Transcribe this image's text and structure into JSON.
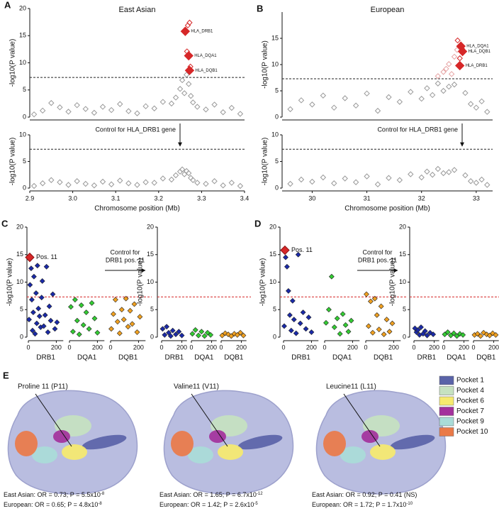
{
  "chart_data": [
    {
      "type": "scatter",
      "panel": "A",
      "title": "East Asian",
      "ylabel": "-log10(P value)",
      "xlim": [
        2.9,
        3.4
      ],
      "ylim": [
        0,
        20
      ],
      "yticks": [
        0,
        5,
        10,
        15,
        20
      ],
      "threshold": 7.3,
      "series": [
        {
          "color": "#9a9a9a",
          "x": [
            2.91,
            2.93,
            2.95,
            2.97,
            2.99,
            3.01,
            3.03,
            3.05,
            3.07,
            3.09,
            3.11,
            3.13,
            3.15,
            3.17,
            3.19,
            3.21,
            3.23,
            3.24,
            3.25,
            3.255,
            3.26,
            3.265,
            3.27,
            3.275,
            3.28,
            3.29,
            3.31,
            3.33,
            3.35,
            3.37,
            3.39
          ],
          "values": [
            0.5,
            1.2,
            2.6,
            1.8,
            1.0,
            2.2,
            1.5,
            0.8,
            1.9,
            1.3,
            2.4,
            1.1,
            0.7,
            2.0,
            1.6,
            2.8,
            2.5,
            3.6,
            5.2,
            6.8,
            4.4,
            7.8,
            6.1,
            3.9,
            2.7,
            1.9,
            1.4,
            2.3,
            0.9,
            1.7,
            0.6
          ]
        },
        {
          "color": "#d62728",
          "x": [
            3.268,
            3.272,
            3.266,
            3.274
          ],
          "values": [
            16.9,
            17.4,
            12.1,
            9.3
          ]
        },
        {
          "color": "#d62728",
          "x": [
            3.262,
            3.27,
            3.272
          ],
          "values": [
            15.8,
            11.3,
            8.6
          ],
          "point_labels": [
            "HLA_DRB1",
            "HLA_DQA1",
            "HLA_DQB1"
          ]
        }
      ]
    },
    {
      "type": "scatter",
      "ylabel": "-log10(P value)",
      "xlabel": "Chromosome position (Mb)",
      "annotation": "Control for HLA_DRB1 gene",
      "xlim": [
        2.9,
        3.4
      ],
      "xticks": [
        2.9,
        {
          "value": 3,
          "label": "3.0"
        },
        3.1,
        3.2,
        3.3,
        3.4
      ],
      "ylim": [
        0,
        10
      ],
      "yticks": [
        0,
        5,
        10
      ],
      "threshold": 7.3,
      "series": [
        {
          "color": "#9a9a9a",
          "x": [
            2.91,
            2.93,
            2.95,
            2.97,
            2.99,
            3.01,
            3.03,
            3.05,
            3.07,
            3.09,
            3.11,
            3.13,
            3.15,
            3.17,
            3.19,
            3.21,
            3.23,
            3.24,
            3.25,
            3.255,
            3.26,
            3.265,
            3.27,
            3.275,
            3.28,
            3.29,
            3.31,
            3.33,
            3.35,
            3.37,
            3.39
          ],
          "values": [
            0.4,
            0.9,
            1.5,
            1.1,
            0.6,
            1.3,
            0.8,
            0.5,
            1.2,
            0.7,
            1.4,
            0.9,
            0.6,
            1.1,
            1.0,
            1.8,
            1.6,
            2.4,
            3.1,
            3.5,
            2.6,
            3.2,
            2.8,
            1.9,
            1.5,
            1.0,
            0.8,
            1.3,
            0.5,
            1.0,
            0.4
          ]
        }
      ]
    },
    {
      "type": "scatter",
      "panel": "B",
      "title": "European",
      "ylabel": "-log10(P value)",
      "xlim": [
        29.45,
        33.3
      ],
      "ylim": [
        0,
        20
      ],
      "yticks": [
        0,
        5,
        10,
        15
      ],
      "threshold": 7.3,
      "series": [
        {
          "color": "#9a9a9a",
          "x": [
            29.6,
            29.8,
            30.0,
            30.2,
            30.4,
            30.6,
            30.8,
            31.0,
            31.2,
            31.4,
            31.6,
            31.8,
            32.0,
            32.1,
            32.2,
            32.3,
            32.4,
            32.5,
            32.6,
            32.8,
            32.9,
            33.0,
            33.1,
            33.2
          ],
          "values": [
            1.5,
            3.2,
            2.4,
            4.1,
            1.8,
            3.6,
            2.2,
            4.5,
            1.2,
            3.8,
            2.9,
            4.8,
            3.5,
            5.5,
            4.2,
            6.4,
            5.0,
            5.8,
            6.2,
            4.6,
            2.5,
            1.8,
            3.0,
            1.0
          ]
        },
        {
          "color": "#e6a3a3",
          "x": [
            32.3,
            32.4,
            32.45,
            32.5,
            32.55,
            32.6,
            32.65
          ],
          "values": [
            7.8,
            8.6,
            9.2,
            10.1,
            8.2,
            11.5,
            12.8
          ]
        },
        {
          "color": "#d62728",
          "x": [
            32.66,
            32.7,
            32.74
          ],
          "values": [
            14.6,
            11.2,
            13.0
          ]
        },
        {
          "color": "#d62728",
          "x": [
            32.72,
            32.75,
            32.7
          ],
          "values": [
            13.5,
            12.5,
            9.8
          ],
          "point_labels": [
            "HLA_DQA1",
            "HLA_DQB1",
            "HLA_DRB1"
          ]
        }
      ]
    },
    {
      "type": "scatter",
      "ylabel": "-log10(P value)",
      "xlabel": "Chromosome position (Mb)",
      "annotation": "Control for HLA_DRB1 gene",
      "xlim": [
        29.45,
        33.3
      ],
      "xticks": [
        30,
        31,
        32,
        33
      ],
      "ylim": [
        0,
        10
      ],
      "yticks": [
        0,
        5,
        10
      ],
      "threshold": 7.3,
      "series": [
        {
          "color": "#9a9a9a",
          "x": [
            29.6,
            29.8,
            30.0,
            30.2,
            30.4,
            30.6,
            30.8,
            31.0,
            31.2,
            31.4,
            31.6,
            31.8,
            32.0,
            32.1,
            32.2,
            32.3,
            32.4,
            32.5,
            32.6,
            32.8,
            32.9,
            33.0,
            33.1,
            33.2
          ],
          "values": [
            0.8,
            1.6,
            1.2,
            2.0,
            0.9,
            1.8,
            1.1,
            2.2,
            0.7,
            1.9,
            1.5,
            2.6,
            2.0,
            3.1,
            2.5,
            3.6,
            2.8,
            3.0,
            3.4,
            2.4,
            1.3,
            1.0,
            1.6,
            0.6
          ]
        }
      ]
    },
    {
      "type": "strip",
      "panel": "C",
      "ylabel": "-log10(P value)",
      "ylim": [
        0,
        20
      ],
      "yticks": [
        0,
        5,
        10,
        15,
        20
      ],
      "threshold": 7.3,
      "xlim": [
        0,
        250
      ],
      "xticks": [
        0,
        200
      ],
      "series": [
        {
          "name": "DRB1",
          "color": "#1a2aa8",
          "x": [
            5,
            12,
            20,
            25,
            30,
            35,
            40,
            48,
            55,
            60,
            65,
            72,
            80,
            88,
            95,
            100,
            110,
            120,
            130,
            140,
            150,
            160,
            175,
            190,
            205
          ],
          "values": [
            3.2,
            9.5,
            12.5,
            6.8,
            1.2,
            4.5,
            11.0,
            0.6,
            8.0,
            2.5,
            13.0,
            5.2,
            3.8,
            1.8,
            7.2,
            10.2,
            2.0,
            4.0,
            12.8,
            0.9,
            5.6,
            3.0,
            7.8,
            1.5,
            2.7
          ],
          "highlight_x": 10,
          "highlight_value": 14.5,
          "highlight_label": "Pos. 11",
          "highlight_color": "#d62728"
        },
        {
          "name": "DQA1",
          "color": "#33cc33",
          "x": [
            10,
            25,
            40,
            55,
            70,
            85,
            100,
            120,
            140,
            160,
            180,
            200
          ],
          "values": [
            5.5,
            1.0,
            6.8,
            3.0,
            0.5,
            5.8,
            2.2,
            4.5,
            1.5,
            6.2,
            3.4,
            0.8
          ]
        },
        {
          "name": "DQB1",
          "color": "#f0a020",
          "x": [
            5,
            20,
            35,
            50,
            65,
            80,
            95,
            110,
            125,
            140,
            155,
            170,
            190,
            210
          ],
          "values": [
            1.5,
            4.2,
            6.8,
            2.8,
            0.7,
            5.0,
            3.2,
            7.0,
            1.9,
            4.8,
            2.4,
            6.0,
            0.9,
            3.7
          ]
        }
      ]
    },
    {
      "type": "strip",
      "ylabel": "-log10(P value)",
      "annotation": [
        "Control for",
        "DRB1 pos. 11"
      ],
      "ylim": [
        0,
        20
      ],
      "yticks": [
        0,
        5,
        10,
        15,
        20
      ],
      "threshold": 7.3,
      "xlim": [
        0,
        250
      ],
      "xticks": [
        0,
        200
      ],
      "series": [
        {
          "name": "DRB1",
          "color": "#1a2aa8",
          "x": [
            10,
            30,
            50,
            70,
            90,
            110,
            140,
            170,
            200
          ],
          "values": [
            1.5,
            0.4,
            1.9,
            0.8,
            0.2,
            1.2,
            0.5,
            1.0,
            0.3
          ]
        },
        {
          "name": "DQA1",
          "color": "#33cc33",
          "x": [
            10,
            40,
            70,
            100,
            130,
            160,
            190
          ],
          "values": [
            0.6,
            1.3,
            0.3,
            1.0,
            0.2,
            0.8,
            0.4
          ]
        },
        {
          "name": "DQB1",
          "color": "#f0a020",
          "x": [
            10,
            40,
            70,
            100,
            130,
            160,
            190,
            220
          ],
          "values": [
            0.3,
            0.7,
            0.5,
            0.2,
            0.6,
            0.4,
            0.8,
            0.3
          ]
        }
      ]
    },
    {
      "type": "strip",
      "panel": "D",
      "ylabel": "-log10(P value)",
      "ylim": [
        0,
        20
      ],
      "yticks": [
        0,
        5,
        10,
        15,
        20
      ],
      "threshold": 7.3,
      "xlim": [
        0,
        250
      ],
      "xticks": [
        0,
        200
      ],
      "series": [
        {
          "name": "DRB1",
          "color": "#1a2aa8",
          "x": [
            5,
            15,
            25,
            35,
            45,
            55,
            65,
            75,
            90,
            105,
            120,
            140,
            160,
            180,
            200
          ],
          "values": [
            2.0,
            14.5,
            12.8,
            8.4,
            4.0,
            1.2,
            6.6,
            3.2,
            0.7,
            15.0,
            2.5,
            4.5,
            1.5,
            3.6,
            0.9
          ],
          "highlight_x": 10,
          "highlight_value": 15.8,
          "highlight_label": "Pos. 11",
          "highlight_color": "#d62728"
        },
        {
          "name": "DQA1",
          "color": "#33cc33",
          "x": [
            10,
            30,
            50,
            70,
            90,
            110,
            130,
            150,
            170,
            190
          ],
          "values": [
            2.6,
            5.0,
            11.0,
            1.8,
            3.4,
            0.6,
            4.2,
            2.2,
            1.0,
            3.0
          ]
        },
        {
          "name": "DQB1",
          "color": "#f0a020",
          "x": [
            5,
            20,
            35,
            50,
            65,
            80,
            95,
            110,
            130,
            150,
            170,
            190
          ],
          "values": [
            7.8,
            2.0,
            6.5,
            0.8,
            7.0,
            4.0,
            1.4,
            5.6,
            0.5,
            3.2,
            1.0,
            2.5
          ]
        }
      ]
    },
    {
      "type": "strip",
      "ylabel": "-log10(P value)",
      "annotation": [
        "Control for",
        "DRB1 pos. 11"
      ],
      "ylim": [
        0,
        20
      ],
      "yticks": [
        0,
        5,
        10,
        15,
        20
      ],
      "threshold": 7.3,
      "xlim": [
        0,
        250
      ],
      "xticks": [
        0,
        200
      ],
      "series": [
        {
          "name": "DRB1",
          "color": "#1a2aa8",
          "x": [
            10,
            25,
            40,
            55,
            70,
            90,
            110,
            130,
            160,
            190
          ],
          "values": [
            1.6,
            0.9,
            1.3,
            0.4,
            1.8,
            0.6,
            1.1,
            0.3,
            0.8,
            0.5
          ]
        },
        {
          "name": "DQA1",
          "color": "#33cc33",
          "x": [
            10,
            40,
            70,
            100,
            130,
            160,
            190
          ],
          "values": [
            0.5,
            0.9,
            0.3,
            0.7,
            0.2,
            0.6,
            0.4
          ]
        },
        {
          "name": "DQB1",
          "color": "#f0a020",
          "x": [
            10,
            40,
            70,
            100,
            130,
            160,
            190,
            220
          ],
          "values": [
            0.4,
            0.6,
            0.2,
            0.8,
            0.5,
            0.3,
            0.7,
            0.4
          ]
        }
      ]
    }
  ],
  "panel_e": {
    "label": "E",
    "legend": [
      {
        "name": "Pocket 1",
        "color": "#5a63a8"
      },
      {
        "name": "Pocket 4",
        "color": "#c6e2c0"
      },
      {
        "name": "Pocket 6",
        "color": "#f6ea6e"
      },
      {
        "name": "Pocket 7",
        "color": "#a3319c"
      },
      {
        "name": "Pocket 9",
        "color": "#a9dcd8"
      },
      {
        "name": "Pocket 10",
        "color": "#ea7a48"
      }
    ],
    "structures": [
      {
        "title": "Proline 11 (P11)",
        "stats": [
          {
            "text": "East Asian: OR = 0.73; P = 5.5x10",
            "exponent": "-8"
          },
          {
            "text": "European:  OR = 0.65; P = 4.8x10",
            "exponent": "-8"
          }
        ]
      },
      {
        "title": "Valine11 (V11)",
        "stats": [
          {
            "text": "East Asian: OR = 1.65; P = 6.7x10",
            "exponent": "-12"
          },
          {
            "text": "European:  OR = 1.42; P = 2.6x10",
            "exponent": "-5"
          }
        ]
      },
      {
        "title": "Leucine11 (L11)",
        "stats": [
          {
            "text": "East Asian: OR = 0.92; P = 0.41 (NS)"
          },
          {
            "text": "European:  OR = 1.72; P = 1.7x10",
            "exponent": "-10"
          }
        ]
      }
    ]
  }
}
